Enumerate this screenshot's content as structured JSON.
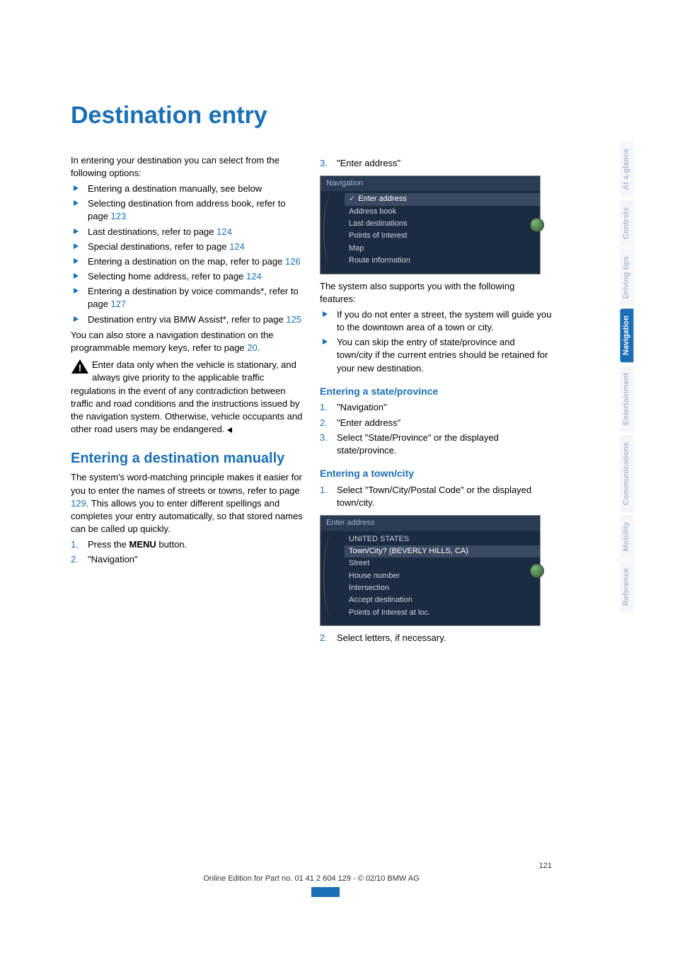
{
  "title": "Destination entry",
  "intro": "In entering your destination you can select from the following options:",
  "options": [
    {
      "pre": "Entering a destination manually, see below",
      "link": ""
    },
    {
      "pre": "Selecting destination from address book, refer to page ",
      "link": "123"
    },
    {
      "pre": "Last destinations, refer to page ",
      "link": "124"
    },
    {
      "pre": "Special destinations, refer to page ",
      "link": "124"
    },
    {
      "pre": "Entering a destination on the map, refer to page ",
      "link": "126"
    },
    {
      "pre": "Selecting home address, refer to page ",
      "link": "124"
    },
    {
      "pre": "Entering a destination by voice commands*, refer to page ",
      "link": "127"
    },
    {
      "pre": "Destination entry via BMW Assist*, refer to page ",
      "link": "125"
    }
  ],
  "memory_pre": "You can also store a navigation destination on the programmable memory keys, refer to page ",
  "memory_link": "20",
  "memory_post": ".",
  "warning": "Enter data only when the vehicle is stationary, and always give priority to the applicable traffic regulations in the event of any contradiction between traffic and road conditions and the instructions issued by the navigation system. Otherwise, vehicle occupants and other road users may be endangered.",
  "section_manual": {
    "heading": "Entering a destination manually",
    "para_pre": "The system's word-matching principle makes it easier for you to enter the names of streets or towns, refer to page ",
    "para_link": "129",
    "para_post": ". This allows you to enter different spellings and completes your entry automatically, so that stored names can be called up quickly.",
    "steps12": [
      {
        "n": "1.",
        "t": "Press the MENU button."
      },
      {
        "n": "2.",
        "t": "\"Navigation\""
      }
    ]
  },
  "step3": {
    "n": "3.",
    "t": "\"Enter address\""
  },
  "screenshot1": {
    "header": "Navigation",
    "rows": [
      {
        "label": "Enter address",
        "sel": true,
        "check": true
      },
      {
        "label": "Address book"
      },
      {
        "label": "Last destinations"
      },
      {
        "label": "Points of Interest"
      },
      {
        "label": "Map"
      },
      {
        "label": "Route information"
      }
    ]
  },
  "support_text": "The system also supports you with the following features:",
  "support_items": [
    "If you do not enter a street, the system will guide you to the downtown area of a town or city.",
    "You can skip the entry of state/province and town/city if the current entries should be retained for your new destination."
  ],
  "section_state": {
    "heading": "Entering a state/province",
    "steps": [
      {
        "n": "1.",
        "t": "\"Navigation\""
      },
      {
        "n": "2.",
        "t": "\"Enter address\""
      },
      {
        "n": "3.",
        "t": "Select \"State/Province\" or the displayed state/province."
      }
    ]
  },
  "section_town": {
    "heading": "Entering a town/city",
    "step1": {
      "n": "1.",
      "t": "Select \"Town/City/Postal Code\" or the displayed town/city."
    }
  },
  "screenshot2": {
    "header": "Enter address",
    "rows": [
      {
        "label": "UNITED STATES"
      },
      {
        "label": "Town/City? (BEVERLY HILLS, CA)",
        "sel": true
      },
      {
        "label": "Street"
      },
      {
        "label": "House number"
      },
      {
        "label": "Intersection"
      },
      {
        "label": "Accept destination"
      },
      {
        "label": "Points of Interest at loc."
      }
    ]
  },
  "step_after2": {
    "n": "2.",
    "t": "Select letters, if necessary."
  },
  "sidebar_tabs": [
    {
      "label": "At a glance",
      "active": false
    },
    {
      "label": "Controls",
      "active": false
    },
    {
      "label": "Driving tips",
      "active": false
    },
    {
      "label": "Navigation",
      "active": true
    },
    {
      "label": "Entertainment",
      "active": false
    },
    {
      "label": "Communications",
      "active": false
    },
    {
      "label": "Mobility",
      "active": false
    },
    {
      "label": "Reference",
      "active": false
    }
  ],
  "footer": {
    "page": "121",
    "line": "Online Edition for Part no. 01 41 2 604 129 - © 02/10 BMW AG"
  }
}
